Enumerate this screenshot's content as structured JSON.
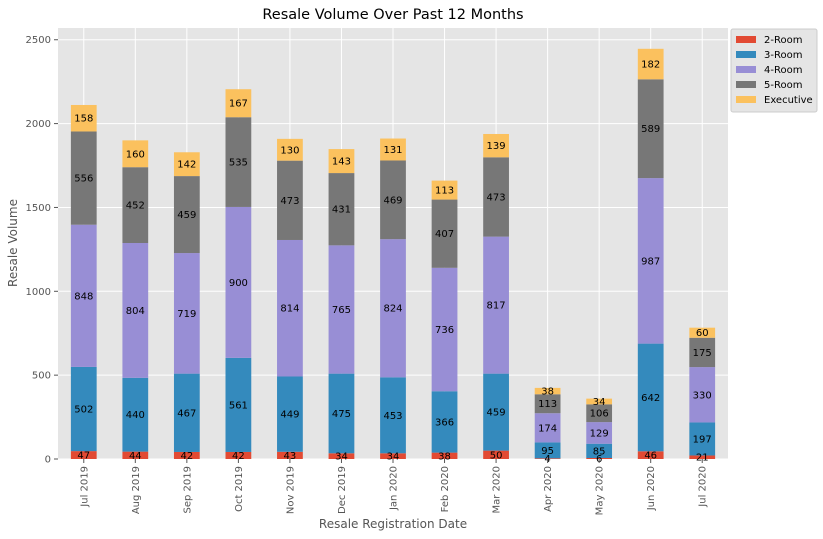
{
  "chart_data": {
    "type": "bar",
    "stacked": true,
    "title": "Resale Volume Over Past 12 Months",
    "xlabel": "Resale Registration Date",
    "ylabel": "Resale Volume",
    "ylim": [
      0,
      2570
    ],
    "yticks": [
      0,
      500,
      1000,
      1500,
      2000,
      2500
    ],
    "grid": true,
    "legend_position": "top-right",
    "categories": [
      "Jul 2019",
      "Aug 2019",
      "Sep 2019",
      "Oct 2019",
      "Nov 2019",
      "Dec 2019",
      "Jan 2020",
      "Feb 2020",
      "Mar 2020",
      "Apr 2020",
      "May 2020",
      "Jun 2020",
      "Jul 2020"
    ],
    "series": [
      {
        "name": "2-Room",
        "color": "#E24A33",
        "values": [
          47,
          44,
          42,
          42,
          43,
          34,
          34,
          38,
          50,
          4,
          6,
          46,
          21
        ]
      },
      {
        "name": "3-Room",
        "color": "#348ABD",
        "values": [
          502,
          440,
          467,
          561,
          449,
          475,
          453,
          366,
          459,
          95,
          85,
          642,
          197
        ]
      },
      {
        "name": "4-Room",
        "color": "#988ED5",
        "values": [
          848,
          804,
          719,
          900,
          814,
          765,
          824,
          736,
          817,
          174,
          129,
          987,
          330
        ]
      },
      {
        "name": "5-Room",
        "color": "#777777",
        "values": [
          556,
          452,
          459,
          535,
          473,
          431,
          469,
          407,
          473,
          113,
          106,
          589,
          175
        ]
      },
      {
        "name": "Executive",
        "color": "#FBC15E",
        "values": [
          158,
          160,
          142,
          167,
          130,
          143,
          131,
          113,
          139,
          38,
          34,
          182,
          60
        ]
      }
    ]
  }
}
